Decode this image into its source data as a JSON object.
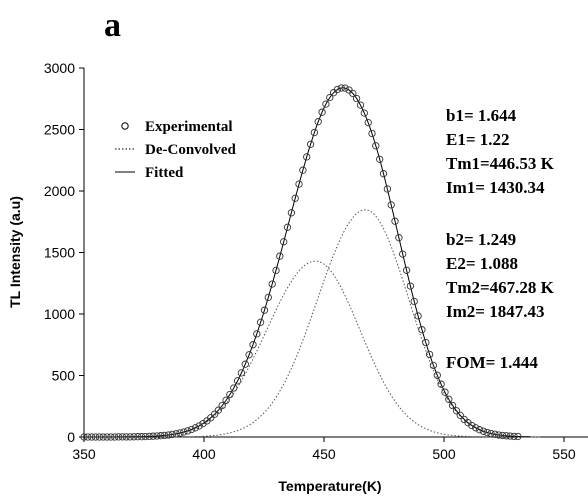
{
  "chart_data": {
    "type": "line",
    "panel_label": "a",
    "xlabel": "Temperature(K)",
    "ylabel": "TL Intensity (a.u)",
    "xlim": [
      350,
      560
    ],
    "ylim": [
      0,
      3000
    ],
    "xticks": [
      "350",
      "400",
      "450",
      "500",
      "550"
    ],
    "yticks": [
      "0",
      "500",
      "1000",
      "1500",
      "2000",
      "2500",
      "3000"
    ],
    "grid": false,
    "legend_position": "top-left",
    "legend": [
      "Experimental",
      "De-Convolved",
      "Fitted"
    ],
    "peaks": [
      {
        "b": 1.644,
        "E": 1.22,
        "Tm": 446.53,
        "Im": 1430.34,
        "sigma": 19.5
      },
      {
        "b": 1.249,
        "E": 1.088,
        "Tm": 467.28,
        "Im": 1847.43,
        "sigma": 19.0
      }
    ],
    "series": [
      {
        "name": "Experimental",
        "style": "open-circles",
        "x_start": 350,
        "x_end": 532,
        "x_step": 1.6
      },
      {
        "name": "De-Convolved",
        "style": "dotted",
        "x_start": 360,
        "x_end": 540
      },
      {
        "name": "Fitted",
        "style": "solid",
        "x_start": 350,
        "x_end": 536
      }
    ],
    "annotations": {
      "peak1": [
        "b1=  1.644",
        "E1=  1.22",
        "Tm1=446.53 K",
        "Im1= 1430.34"
      ],
      "peak2": [
        "b2=  1.249",
        "E2=  1.088",
        "Tm2=467.28 K",
        "Im2=  1847.43"
      ],
      "fom": "FOM= 1.444"
    }
  }
}
